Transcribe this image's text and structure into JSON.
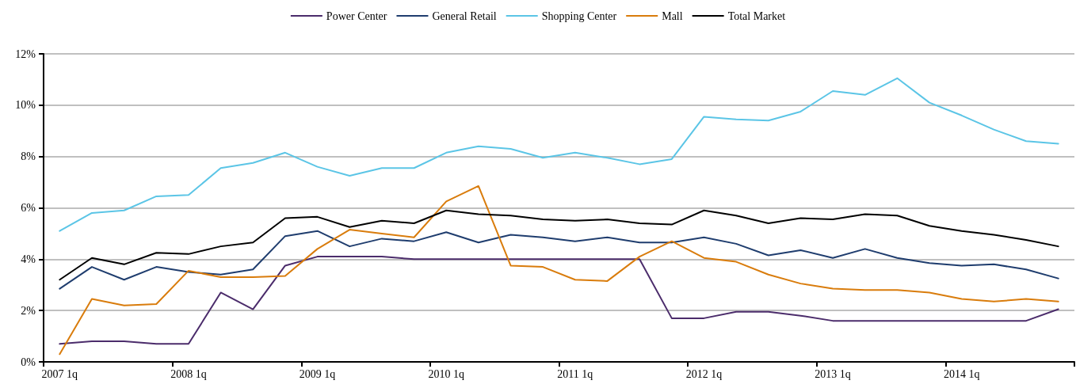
{
  "chart_data": {
    "type": "line",
    "categories": [
      "2007 1q",
      null,
      null,
      null,
      "2008 1q",
      null,
      null,
      null,
      "2009 1q",
      null,
      null,
      null,
      "2010 1q",
      null,
      null,
      null,
      "2011 1q",
      null,
      null,
      null,
      "2012 1q",
      null,
      null,
      null,
      "2013 1q",
      null,
      null,
      null,
      "2014 1q",
      null,
      null,
      null
    ],
    "series": [
      {
        "name": "Power Center",
        "color": "#4b2c6b",
        "values": [
          0.7,
          0.8,
          0.8,
          0.7,
          0.7,
          2.7,
          2.05,
          3.75,
          4.1,
          4.1,
          4.1,
          4.0,
          4.0,
          4.0,
          4.0,
          4.0,
          4.0,
          4.0,
          4.0,
          1.7,
          1.7,
          1.95,
          1.95,
          1.8,
          1.6,
          1.6,
          1.6,
          1.6,
          1.6,
          1.6,
          1.6,
          2.05
        ]
      },
      {
        "name": "General Retail",
        "color": "#1f3d6e",
        "values": [
          2.85,
          3.7,
          3.2,
          3.7,
          3.5,
          3.4,
          3.6,
          4.9,
          5.1,
          4.5,
          4.8,
          4.7,
          5.05,
          4.65,
          4.95,
          4.85,
          4.7,
          4.85,
          4.65,
          4.65,
          4.85,
          4.6,
          4.15,
          4.35,
          4.05,
          4.4,
          4.05,
          3.85,
          3.75,
          3.8,
          3.6,
          3.25
        ]
      },
      {
        "name": "Shopping Center",
        "color": "#5bc5e6",
        "values": [
          5.1,
          5.8,
          5.9,
          6.45,
          6.5,
          7.55,
          7.75,
          8.15,
          7.6,
          7.25,
          7.55,
          7.55,
          8.15,
          8.4,
          8.3,
          7.95,
          8.15,
          7.95,
          7.7,
          7.9,
          9.55,
          9.45,
          9.4,
          9.75,
          10.55,
          10.4,
          11.05,
          10.1,
          9.6,
          9.05,
          8.6,
          8.5
        ]
      },
      {
        "name": "Mall",
        "color": "#d97c0c",
        "values": [
          0.3,
          2.45,
          2.2,
          2.25,
          3.55,
          3.3,
          3.3,
          3.35,
          4.4,
          5.15,
          5.0,
          4.85,
          6.25,
          6.85,
          3.75,
          3.7,
          3.2,
          3.15,
          4.1,
          4.7,
          4.05,
          3.9,
          3.4,
          3.05,
          2.85,
          2.8,
          2.8,
          2.7,
          2.45,
          2.35,
          2.45,
          2.35
        ]
      },
      {
        "name": "Total Market",
        "color": "#000000",
        "values": [
          3.2,
          4.05,
          3.8,
          4.25,
          4.2,
          4.5,
          4.65,
          5.6,
          5.65,
          5.25,
          5.5,
          5.4,
          5.9,
          5.75,
          5.7,
          5.55,
          5.5,
          5.55,
          5.4,
          5.35,
          5.9,
          5.7,
          5.4,
          5.6,
          5.55,
          5.75,
          5.7,
          5.3,
          5.1,
          4.95,
          4.75,
          4.5
        ]
      }
    ],
    "ylim": [
      0,
      12
    ],
    "yticks": [
      {
        "value": 0,
        "label": "0%"
      },
      {
        "value": 2,
        "label": "2%"
      },
      {
        "value": 4,
        "label": "4%"
      },
      {
        "value": 6,
        "label": "6%"
      },
      {
        "value": 8,
        "label": "8%"
      },
      {
        "value": 10,
        "label": "10%"
      },
      {
        "value": 12,
        "label": "12%"
      }
    ],
    "grid": "y",
    "legend": "top",
    "marker": "none",
    "line_style": "solid"
  }
}
